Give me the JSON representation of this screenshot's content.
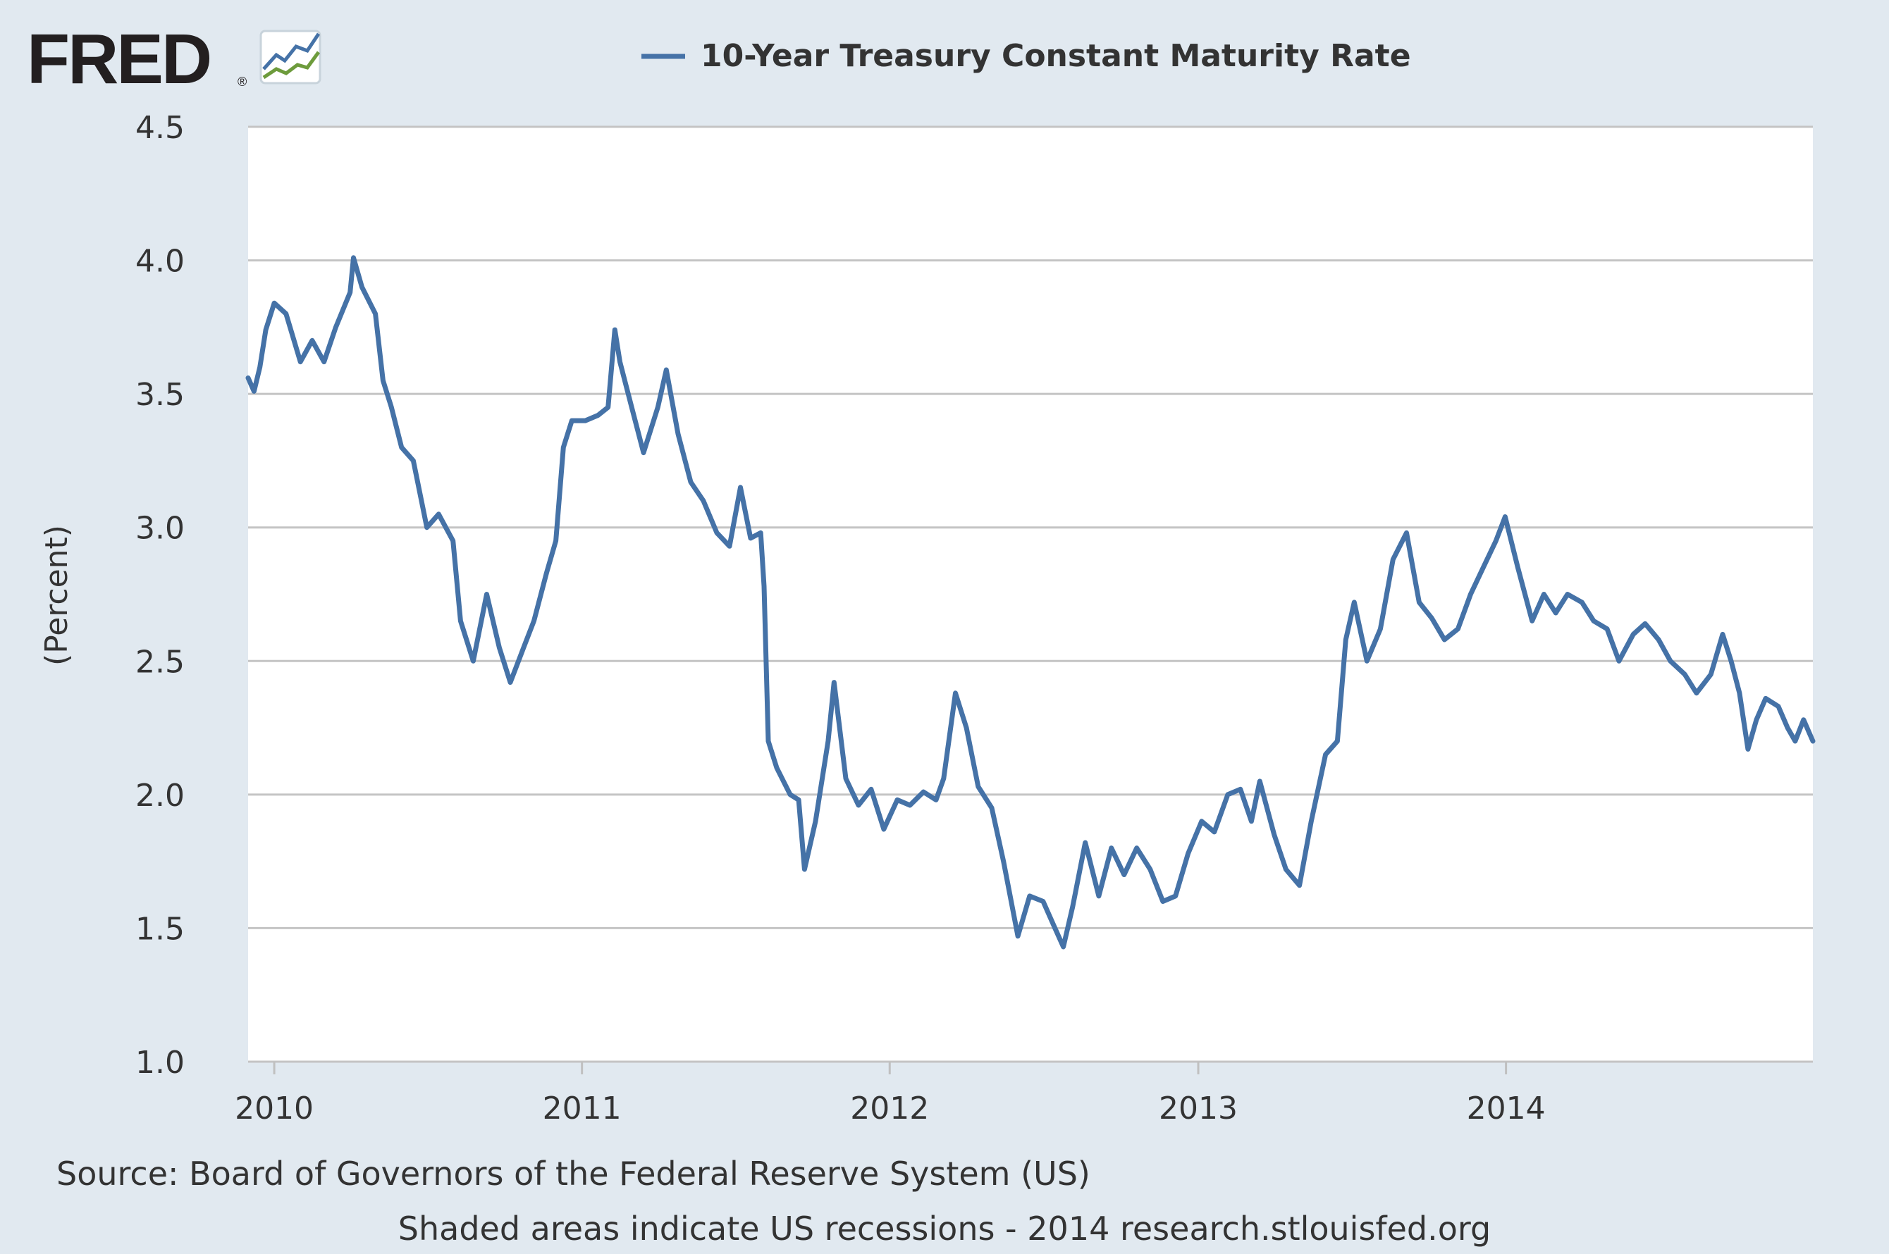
{
  "logo": {
    "text": "FRED",
    "registered_mark": "®"
  },
  "colors": {
    "background": "#e1e9f0",
    "plot_background": "#ffffff",
    "gridline": "#c4c4c4",
    "series": "#4572a7",
    "text": "#333333",
    "logo_dark": "#231f20",
    "logo_blue": "#4572a7",
    "logo_green": "#6d9b3c"
  },
  "footer": {
    "source": "Source: Board of Governors of the Federal Reserve System (US)",
    "note": "Shaded areas indicate US recessions - 2014 research.stlouisfed.org"
  },
  "chart_data": {
    "type": "line",
    "title": "",
    "xlabel": "",
    "ylabel": "(Percent)",
    "ylim": [
      1.0,
      4.5
    ],
    "yticks": [
      "1.0",
      "1.5",
      "2.0",
      "2.5",
      "3.0",
      "3.5",
      "4.0",
      "4.5"
    ],
    "xlim": [
      "2009-12-01",
      "2014-12-31"
    ],
    "xticks": [
      {
        "date": "2010-01-01",
        "label": "2010"
      },
      {
        "date": "2011-01-01",
        "label": "2011"
      },
      {
        "date": "2012-01-01",
        "label": "2012"
      },
      {
        "date": "2013-01-01",
        "label": "2013"
      },
      {
        "date": "2014-01-01",
        "label": "2014"
      }
    ],
    "grid": true,
    "legend": "top",
    "series": [
      {
        "name": "10-Year Treasury Constant Maturity Rate",
        "color": "#4572a7",
        "points": [
          [
            "2009-12-01",
            3.56
          ],
          [
            "2009-12-08",
            3.51
          ],
          [
            "2009-12-15",
            3.6
          ],
          [
            "2009-12-22",
            3.74
          ],
          [
            "2010-01-01",
            3.84
          ],
          [
            "2010-01-15",
            3.8
          ],
          [
            "2010-02-01",
            3.62
          ],
          [
            "2010-02-15",
            3.7
          ],
          [
            "2010-03-01",
            3.62
          ],
          [
            "2010-03-15",
            3.75
          ],
          [
            "2010-04-01",
            3.88
          ],
          [
            "2010-04-05",
            4.01
          ],
          [
            "2010-04-15",
            3.9
          ],
          [
            "2010-05-01",
            3.8
          ],
          [
            "2010-05-10",
            3.55
          ],
          [
            "2010-05-20",
            3.45
          ],
          [
            "2010-06-01",
            3.3
          ],
          [
            "2010-06-15",
            3.25
          ],
          [
            "2010-07-01",
            3.0
          ],
          [
            "2010-07-15",
            3.05
          ],
          [
            "2010-08-01",
            2.95
          ],
          [
            "2010-08-10",
            2.65
          ],
          [
            "2010-08-25",
            2.5
          ],
          [
            "2010-09-10",
            2.75
          ],
          [
            "2010-09-25",
            2.55
          ],
          [
            "2010-10-08",
            2.42
          ],
          [
            "2010-10-25",
            2.56
          ],
          [
            "2010-11-05",
            2.65
          ],
          [
            "2010-11-20",
            2.83
          ],
          [
            "2010-12-01",
            2.95
          ],
          [
            "2010-12-10",
            3.3
          ],
          [
            "2010-12-20",
            3.4
          ],
          [
            "2011-01-05",
            3.4
          ],
          [
            "2011-01-20",
            3.42
          ],
          [
            "2011-02-01",
            3.45
          ],
          [
            "2011-02-09",
            3.74
          ],
          [
            "2011-02-15",
            3.62
          ],
          [
            "2011-03-01",
            3.45
          ],
          [
            "2011-03-15",
            3.28
          ],
          [
            "2011-04-01",
            3.45
          ],
          [
            "2011-04-11",
            3.59
          ],
          [
            "2011-04-25",
            3.35
          ],
          [
            "2011-05-10",
            3.17
          ],
          [
            "2011-05-25",
            3.1
          ],
          [
            "2011-06-10",
            2.98
          ],
          [
            "2011-06-25",
            2.93
          ],
          [
            "2011-07-08",
            3.15
          ],
          [
            "2011-07-20",
            2.96
          ],
          [
            "2011-08-01",
            2.98
          ],
          [
            "2011-08-05",
            2.78
          ],
          [
            "2011-08-10",
            2.2
          ],
          [
            "2011-08-20",
            2.1
          ],
          [
            "2011-09-05",
            2.0
          ],
          [
            "2011-09-15",
            1.98
          ],
          [
            "2011-09-22",
            1.72
          ],
          [
            "2011-10-05",
            1.9
          ],
          [
            "2011-10-20",
            2.2
          ],
          [
            "2011-10-27",
            2.42
          ],
          [
            "2011-11-10",
            2.06
          ],
          [
            "2011-11-25",
            1.96
          ],
          [
            "2011-12-10",
            2.02
          ],
          [
            "2011-12-25",
            1.87
          ],
          [
            "2012-01-10",
            1.98
          ],
          [
            "2012-01-25",
            1.96
          ],
          [
            "2012-02-10",
            2.01
          ],
          [
            "2012-02-25",
            1.98
          ],
          [
            "2012-03-05",
            2.06
          ],
          [
            "2012-03-19",
            2.38
          ],
          [
            "2012-04-01",
            2.25
          ],
          [
            "2012-04-15",
            2.03
          ],
          [
            "2012-05-01",
            1.95
          ],
          [
            "2012-05-15",
            1.75
          ],
          [
            "2012-06-01",
            1.47
          ],
          [
            "2012-06-15",
            1.62
          ],
          [
            "2012-07-01",
            1.6
          ],
          [
            "2012-07-15",
            1.5
          ],
          [
            "2012-07-25",
            1.43
          ],
          [
            "2012-08-05",
            1.58
          ],
          [
            "2012-08-20",
            1.82
          ],
          [
            "2012-09-05",
            1.62
          ],
          [
            "2012-09-20",
            1.8
          ],
          [
            "2012-10-05",
            1.7
          ],
          [
            "2012-10-20",
            1.8
          ],
          [
            "2012-11-05",
            1.72
          ],
          [
            "2012-11-20",
            1.6
          ],
          [
            "2012-12-05",
            1.62
          ],
          [
            "2012-12-20",
            1.78
          ],
          [
            "2013-01-05",
            1.9
          ],
          [
            "2013-01-20",
            1.86
          ],
          [
            "2013-02-05",
            2.0
          ],
          [
            "2013-02-20",
            2.02
          ],
          [
            "2013-03-05",
            1.9
          ],
          [
            "2013-03-15",
            2.05
          ],
          [
            "2013-04-01",
            1.85
          ],
          [
            "2013-04-15",
            1.72
          ],
          [
            "2013-05-01",
            1.66
          ],
          [
            "2013-05-15",
            1.9
          ],
          [
            "2013-06-01",
            2.15
          ],
          [
            "2013-06-15",
            2.2
          ],
          [
            "2013-06-25",
            2.58
          ],
          [
            "2013-07-05",
            2.72
          ],
          [
            "2013-07-20",
            2.5
          ],
          [
            "2013-08-05",
            2.62
          ],
          [
            "2013-08-20",
            2.88
          ],
          [
            "2013-09-05",
            2.98
          ],
          [
            "2013-09-20",
            2.72
          ],
          [
            "2013-10-05",
            2.66
          ],
          [
            "2013-10-20",
            2.58
          ],
          [
            "2013-11-05",
            2.62
          ],
          [
            "2013-11-20",
            2.75
          ],
          [
            "2013-12-05",
            2.85
          ],
          [
            "2013-12-20",
            2.95
          ],
          [
            "2013-12-31",
            3.04
          ],
          [
            "2014-01-15",
            2.85
          ],
          [
            "2014-02-01",
            2.65
          ],
          [
            "2014-02-15",
            2.75
          ],
          [
            "2014-03-01",
            2.68
          ],
          [
            "2014-03-15",
            2.75
          ],
          [
            "2014-04-01",
            2.72
          ],
          [
            "2014-04-15",
            2.65
          ],
          [
            "2014-05-01",
            2.62
          ],
          [
            "2014-05-15",
            2.5
          ],
          [
            "2014-06-01",
            2.6
          ],
          [
            "2014-06-15",
            2.64
          ],
          [
            "2014-07-01",
            2.58
          ],
          [
            "2014-07-15",
            2.5
          ],
          [
            "2014-08-01",
            2.45
          ],
          [
            "2014-08-15",
            2.38
          ],
          [
            "2014-09-01",
            2.45
          ],
          [
            "2014-09-15",
            2.6
          ],
          [
            "2014-09-25",
            2.5
          ],
          [
            "2014-10-05",
            2.38
          ],
          [
            "2014-10-15",
            2.17
          ],
          [
            "2014-10-25",
            2.28
          ],
          [
            "2014-11-05",
            2.36
          ],
          [
            "2014-11-20",
            2.33
          ],
          [
            "2014-12-01",
            2.25
          ],
          [
            "2014-12-10",
            2.2
          ],
          [
            "2014-12-20",
            2.28
          ],
          [
            "2014-12-31",
            2.2
          ]
        ]
      }
    ]
  }
}
